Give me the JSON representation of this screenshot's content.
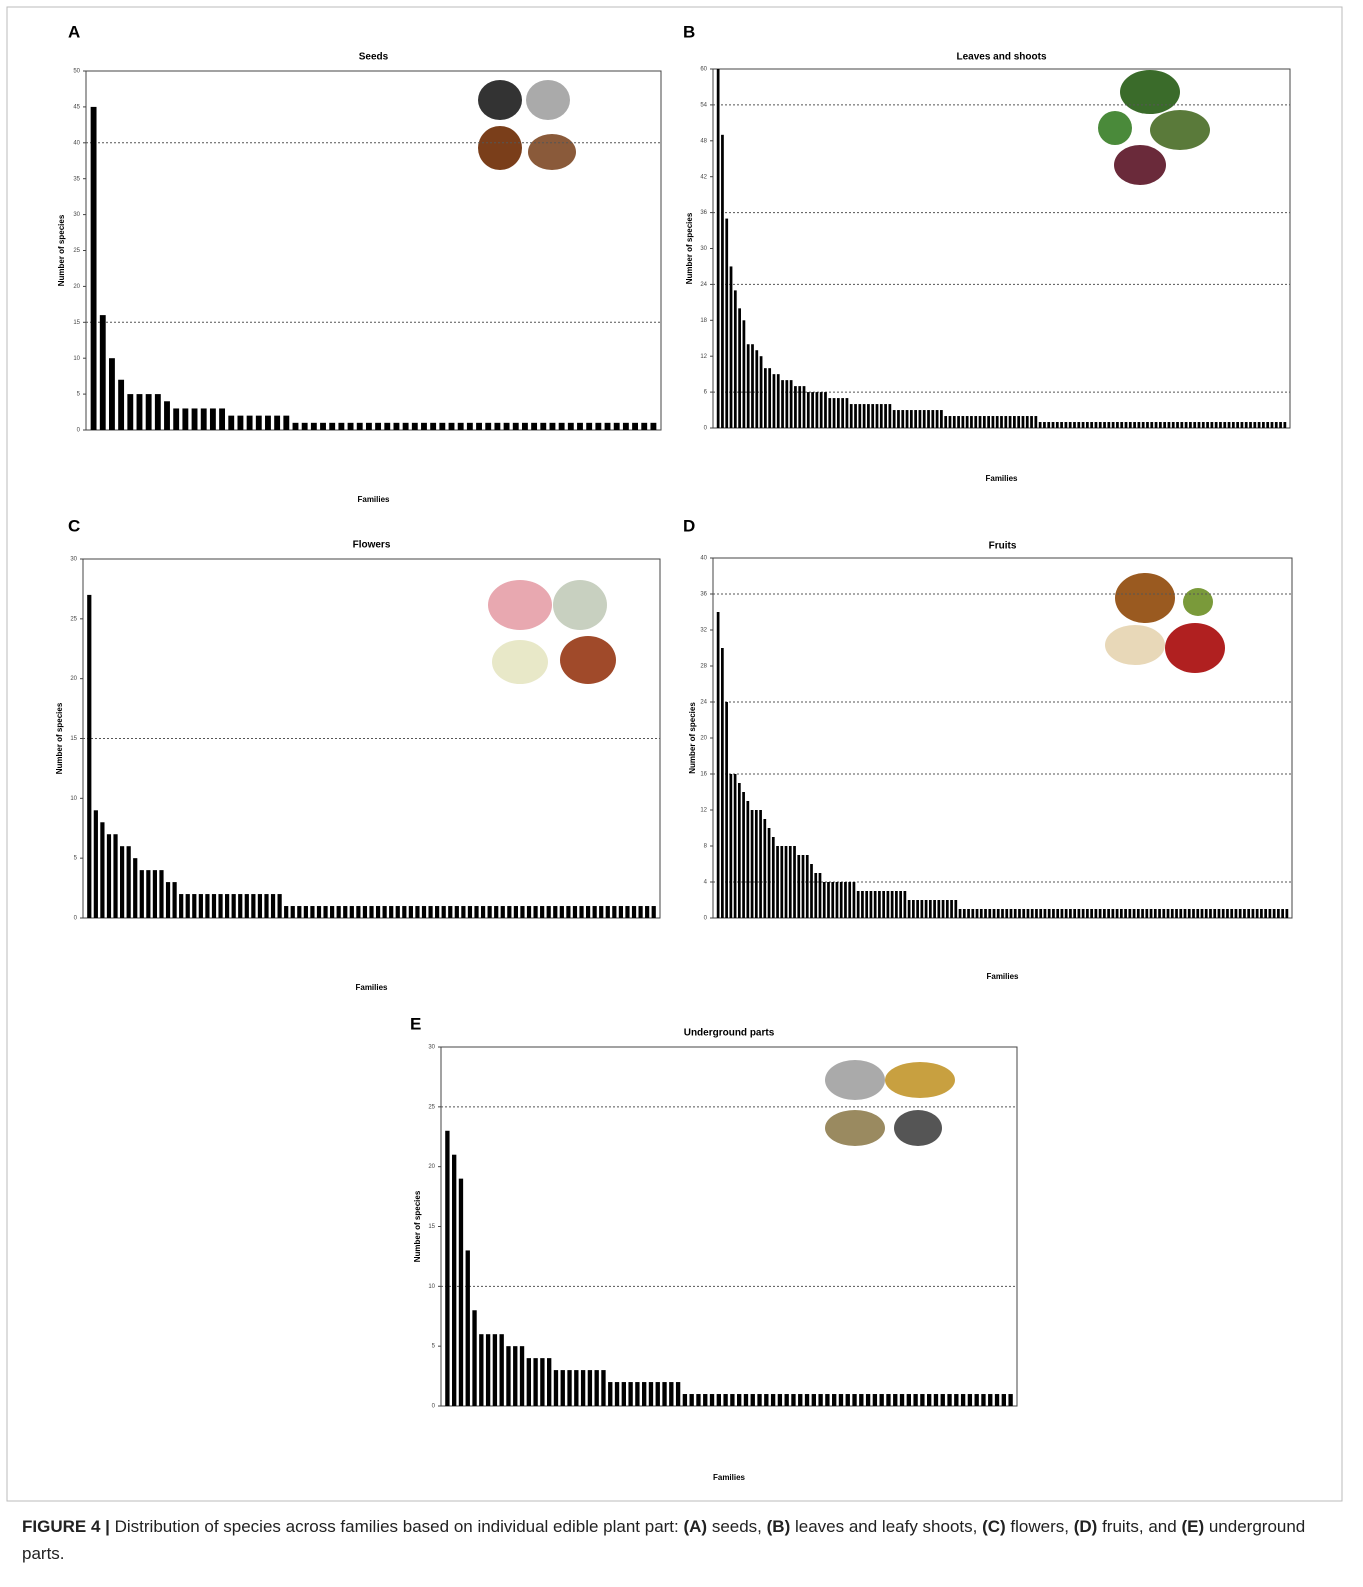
{
  "chart_data": [
    {
      "type": "bar",
      "panel": "A",
      "title": "Seeds",
      "y_label": "Number of species",
      "x_label": "Families",
      "values": [
        45,
        16,
        10,
        7,
        5,
        5,
        5,
        5,
        4,
        3,
        3,
        3,
        3,
        3,
        3,
        2,
        2,
        2,
        2,
        2,
        2,
        2,
        1,
        1,
        1,
        1,
        1,
        1,
        1,
        1,
        1,
        1,
        1,
        1,
        1,
        1,
        1,
        1,
        1,
        1,
        1,
        1,
        1,
        1,
        1,
        1,
        1,
        1,
        1,
        1,
        1,
        1,
        1,
        1,
        1,
        1,
        1,
        1,
        1,
        1,
        1,
        1
      ],
      "color": "#000000",
      "ylim": [
        0,
        50
      ],
      "yticks": [
        0,
        5,
        10,
        15,
        20,
        25,
        30,
        35,
        40,
        45,
        50
      ],
      "hlines": [
        15,
        40
      ]
    },
    {
      "type": "bar",
      "panel": "B",
      "title": "Leaves and shoots",
      "y_label": "Number of species",
      "x_label": "Families",
      "values": [
        60,
        49,
        35,
        27,
        23,
        20,
        18,
        14,
        14,
        13,
        12,
        10,
        10,
        9,
        9,
        8,
        8,
        8,
        7,
        7,
        7,
        6,
        6,
        6,
        6,
        6,
        5,
        5,
        5,
        5,
        5,
        4,
        4,
        4,
        4,
        4,
        4,
        4,
        4,
        4,
        4,
        3,
        3,
        3,
        3,
        3,
        3,
        3,
        3,
        3,
        3,
        3,
        3,
        2,
        2,
        2,
        2,
        2,
        2,
        2,
        2,
        2,
        2,
        2,
        2,
        2,
        2,
        2,
        2,
        2,
        2,
        2,
        2,
        2,
        2,
        1,
        1,
        1,
        1,
        1,
        1,
        1,
        1,
        1,
        1,
        1,
        1,
        1,
        1,
        1,
        1,
        1,
        1,
        1,
        1,
        1,
        1,
        1,
        1,
        1,
        1,
        1,
        1,
        1,
        1,
        1,
        1,
        1,
        1,
        1,
        1,
        1,
        1,
        1,
        1,
        1,
        1,
        1,
        1,
        1,
        1,
        1,
        1,
        1,
        1,
        1,
        1,
        1,
        1,
        1,
        1,
        1,
        1
      ],
      "color": "#000000",
      "ylim": [
        0,
        60
      ],
      "yticks": [
        0,
        6,
        12,
        18,
        24,
        30,
        36,
        42,
        48,
        54,
        60
      ],
      "hlines": [
        6,
        24,
        36,
        54
      ]
    },
    {
      "type": "bar",
      "panel": "C",
      "title": "Flowers",
      "y_label": "Number of species",
      "x_label": "Families",
      "values": [
        27,
        9,
        8,
        7,
        7,
        6,
        6,
        5,
        4,
        4,
        4,
        4,
        3,
        3,
        2,
        2,
        2,
        2,
        2,
        2,
        2,
        2,
        2,
        2,
        2,
        2,
        2,
        2,
        2,
        2,
        1,
        1,
        1,
        1,
        1,
        1,
        1,
        1,
        1,
        1,
        1,
        1,
        1,
        1,
        1,
        1,
        1,
        1,
        1,
        1,
        1,
        1,
        1,
        1,
        1,
        1,
        1,
        1,
        1,
        1,
        1,
        1,
        1,
        1,
        1,
        1,
        1,
        1,
        1,
        1,
        1,
        1,
        1,
        1,
        1,
        1,
        1,
        1,
        1,
        1,
        1,
        1,
        1,
        1,
        1,
        1,
        1
      ],
      "color": "#000000",
      "ylim": [
        0,
        30
      ],
      "yticks": [
        0,
        5,
        10,
        15,
        20,
        25,
        30
      ],
      "hlines": [
        15
      ]
    },
    {
      "type": "bar",
      "panel": "D",
      "title": "Fruits",
      "y_label": "Number of species",
      "x_label": "Families",
      "values": [
        34,
        30,
        24,
        16,
        16,
        15,
        14,
        13,
        12,
        12,
        12,
        11,
        10,
        9,
        8,
        8,
        8,
        8,
        8,
        7,
        7,
        7,
        6,
        5,
        5,
        4,
        4,
        4,
        4,
        4,
        4,
        4,
        4,
        3,
        3,
        3,
        3,
        3,
        3,
        3,
        3,
        3,
        3,
        3,
        3,
        2,
        2,
        2,
        2,
        2,
        2,
        2,
        2,
        2,
        2,
        2,
        2,
        1,
        1,
        1,
        1,
        1,
        1,
        1,
        1,
        1,
        1,
        1,
        1,
        1,
        1,
        1,
        1,
        1,
        1,
        1,
        1,
        1,
        1,
        1,
        1,
        1,
        1,
        1,
        1,
        1,
        1,
        1,
        1,
        1,
        1,
        1,
        1,
        1,
        1,
        1,
        1,
        1,
        1,
        1,
        1,
        1,
        1,
        1,
        1,
        1,
        1,
        1,
        1,
        1,
        1,
        1,
        1,
        1,
        1,
        1,
        1,
        1,
        1,
        1,
        1,
        1,
        1,
        1,
        1,
        1,
        1,
        1,
        1,
        1,
        1,
        1,
        1,
        1,
        1
      ],
      "color": "#000000",
      "ylim": [
        0,
        40
      ],
      "yticks": [
        0,
        4,
        8,
        12,
        16,
        20,
        24,
        28,
        32,
        36,
        40
      ],
      "hlines": [
        4,
        16,
        24,
        36
      ]
    },
    {
      "type": "bar",
      "panel": "E",
      "title": "Underground parts",
      "y_label": "Number of species",
      "x_label": "Families",
      "values": [
        23,
        21,
        19,
        13,
        8,
        6,
        6,
        6,
        6,
        5,
        5,
        5,
        4,
        4,
        4,
        4,
        3,
        3,
        3,
        3,
        3,
        3,
        3,
        3,
        2,
        2,
        2,
        2,
        2,
        2,
        2,
        2,
        2,
        2,
        2,
        1,
        1,
        1,
        1,
        1,
        1,
        1,
        1,
        1,
        1,
        1,
        1,
        1,
        1,
        1,
        1,
        1,
        1,
        1,
        1,
        1,
        1,
        1,
        1,
        1,
        1,
        1,
        1,
        1,
        1,
        1,
        1,
        1,
        1,
        1,
        1,
        1,
        1,
        1,
        1,
        1,
        1,
        1,
        1,
        1,
        1,
        1,
        1,
        1
      ],
      "color": "#000000",
      "ylim": [
        0,
        30
      ],
      "yticks": [
        0,
        5,
        10,
        15,
        20,
        25,
        30
      ],
      "hlines": [
        10,
        25
      ]
    }
  ],
  "caption": {
    "parts": [
      "FIGURE 4 |",
      " Distribution of species across families based on individual edible plant part: ",
      "(A)",
      " seeds, ",
      "(B)",
      " leaves and leafy shoots, ",
      "(C)",
      " flowers, ",
      "(D)",
      " fruits, and ",
      "(E)",
      " underground parts."
    ]
  }
}
